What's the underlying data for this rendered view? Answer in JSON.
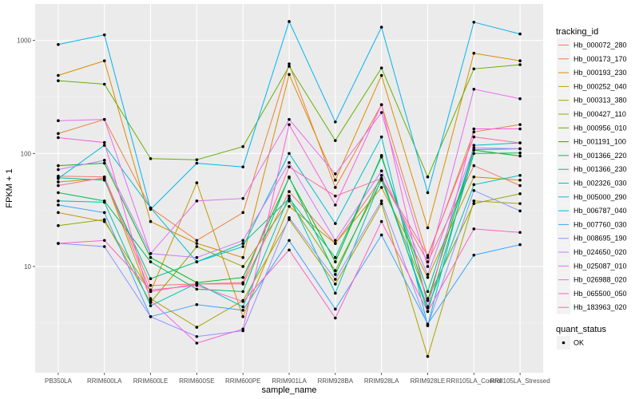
{
  "chart_data": {
    "type": "line",
    "xlabel": "sample_name",
    "ylabel": "FPKM + 1",
    "y_scale": "log10",
    "ylim": [
      1.15,
      2100
    ],
    "y_ticks": [
      10,
      100,
      1000
    ],
    "y_tick_labels": [
      "10",
      "100",
      "1000"
    ],
    "categories": [
      "PB350LA",
      "RRIM600LA",
      "RRIM600LE",
      "RRIM600SE",
      "RRIM600PE",
      "RRIM901LA",
      "RRIM928BA",
      "RRIM928LA",
      "RRIM928LE",
      "RRII105LA_Control",
      "RRII105LA_Stressed"
    ],
    "grid": true,
    "legend_position": "right",
    "legend_title": "tracking_id",
    "marker_legend_title": "quant_status",
    "marker_legend_label": "OK",
    "series": [
      {
        "name": "Hb_000072_280",
        "color": "#f8766d",
        "values": [
          63,
          62,
          6.8,
          7.0,
          7.0,
          46,
          16,
          60,
          11,
          78,
          52
        ]
      },
      {
        "name": "Hb_000173_170",
        "color": "#ec8239",
        "values": [
          150,
          200,
          33,
          17,
          30,
          620,
          50,
          270,
          12,
          155,
          180
        ]
      },
      {
        "name": "Hb_000193_230",
        "color": "#db8e00",
        "values": [
          490,
          660,
          25,
          16,
          12,
          500,
          58,
          490,
          22,
          770,
          660
        ]
      },
      {
        "name": "Hb_000252_040",
        "color": "#c79800",
        "values": [
          30,
          25,
          6.0,
          55,
          3.6,
          34,
          16,
          50,
          8.0,
          62,
          58
        ]
      },
      {
        "name": "Hb_000313_380",
        "color": "#aea200",
        "values": [
          56,
          60,
          5.2,
          2.9,
          5.0,
          26,
          7.0,
          36,
          1.6,
          38,
          36
        ]
      },
      {
        "name": "Hb_000427_110",
        "color": "#8faa00",
        "values": [
          23,
          26,
          4.8,
          15,
          10,
          38,
          9.2,
          58,
          5.2,
          36,
          44
        ]
      },
      {
        "name": "Hb_000956_010",
        "color": "#64b200",
        "values": [
          440,
          410,
          90,
          88,
          115,
          590,
          130,
          570,
          62,
          560,
          610
        ]
      },
      {
        "name": "Hb_001191_100",
        "color": "#00b81b",
        "values": [
          78,
          82,
          12,
          7.2,
          8.0,
          61,
          11,
          96,
          5.0,
          107,
          95
        ]
      },
      {
        "name": "Hb_001366_220",
        "color": "#00bd5c",
        "values": [
          45,
          38,
          11,
          6.3,
          6.0,
          62,
          8.5,
          64,
          4.0,
          100,
          101
        ]
      },
      {
        "name": "Hb_001366_230",
        "color": "#00c08e",
        "values": [
          61,
          58,
          7.8,
          11,
          16,
          40,
          12,
          93,
          6.0,
          108,
          110
        ]
      },
      {
        "name": "Hb_002326_030",
        "color": "#00c1b7",
        "values": [
          38,
          37,
          4.5,
          7.1,
          4.4,
          42,
          5.8,
          60,
          4.3,
          53,
          64
        ]
      },
      {
        "name": "Hb_005000_290",
        "color": "#00bdd4",
        "values": [
          60,
          118,
          33,
          11,
          15,
          100,
          24,
          140,
          3.0,
          118,
          124
        ]
      },
      {
        "name": "Hb_006787_040",
        "color": "#00b5ee",
        "values": [
          920,
          1120,
          32,
          82,
          76,
          1470,
          190,
          1310,
          45,
          1450,
          1140
        ]
      },
      {
        "name": "Hb_007760_030",
        "color": "#3aa5ff",
        "values": [
          35,
          30,
          3.6,
          4.6,
          4.1,
          17,
          4.2,
          19,
          3.1,
          12.6,
          15.6
        ]
      },
      {
        "name": "Hb_008695_190",
        "color": "#8f94ff",
        "values": [
          16,
          15,
          3.6,
          2.4,
          2.7,
          27,
          7.7,
          38,
          3.0,
          47,
          31
        ]
      },
      {
        "name": "Hb_024650_020",
        "color": "#c77cff",
        "values": [
          72,
          87,
          13,
          12,
          17,
          83,
          17,
          70,
          8.5,
          112,
          110
        ]
      },
      {
        "name": "Hb_025087_010",
        "color": "#e76bf3",
        "values": [
          195,
          200,
          13,
          38,
          40,
          200,
          66,
          230,
          10,
          370,
          305
        ]
      },
      {
        "name": "Hb_026988_020",
        "color": "#f862dd",
        "values": [
          138,
          125,
          5.0,
          2.1,
          2.8,
          180,
          35,
          270,
          4.4,
          165,
          165
        ]
      },
      {
        "name": "Hb_065500_050",
        "color": "#ff61c3",
        "values": [
          16,
          17,
          6.2,
          6.8,
          4.9,
          14,
          3.5,
          25,
          4.0,
          21.5,
          20
        ]
      },
      {
        "name": "Hb_183963_020",
        "color": "#fd6aa0",
        "values": [
          52,
          61,
          6.0,
          7.0,
          7.2,
          76,
          42,
          60,
          12.5,
          140,
          124
        ]
      }
    ]
  }
}
